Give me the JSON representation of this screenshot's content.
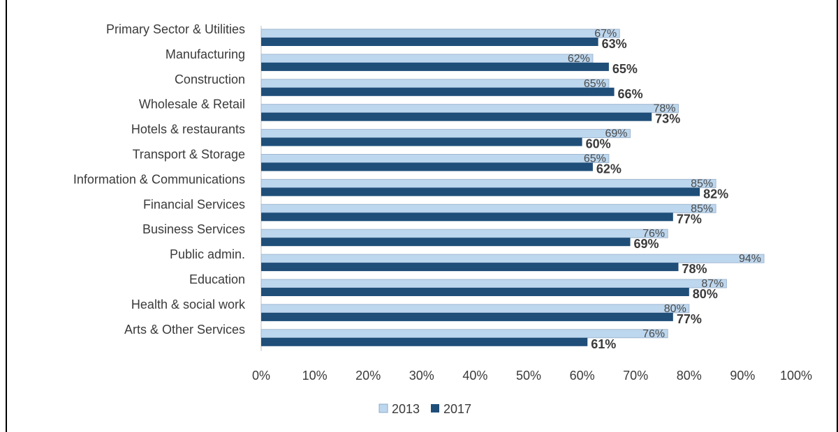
{
  "chart_data": {
    "type": "bar",
    "orientation": "horizontal",
    "categories": [
      "Primary Sector & Utilities",
      "Manufacturing",
      "Construction",
      "Wholesale & Retail",
      "Hotels & restaurants",
      "Transport & Storage",
      "Information & Communications",
      "Financial Services",
      "Business Services",
      "Public admin.",
      "Education",
      "Health & social work",
      "Arts & Other Services"
    ],
    "series": [
      {
        "name": "2013",
        "color": "#bdd7ee",
        "values": [
          67,
          62,
          65,
          78,
          69,
          65,
          85,
          85,
          76,
          94,
          87,
          80,
          76
        ],
        "labels": [
          "67%",
          "62%",
          "65%",
          "78%",
          "69%",
          "65%",
          "85%",
          "85%",
          "76%",
          "94%",
          "87%",
          "80%",
          "76%"
        ]
      },
      {
        "name": "2017",
        "color": "#1f4e79",
        "values": [
          63,
          65,
          66,
          73,
          60,
          62,
          82,
          77,
          69,
          78,
          80,
          77,
          61
        ],
        "labels": [
          "63%",
          "65%",
          "66%",
          "73%",
          "60%",
          "62%",
          "82%",
          "77%",
          "69%",
          "78%",
          "80%",
          "77%",
          "61%"
        ]
      }
    ],
    "xlim": [
      0,
      100
    ],
    "xticks": [
      "0%",
      "10%",
      "20%",
      "30%",
      "40%",
      "50%",
      "60%",
      "70%",
      "80%",
      "90%",
      "100%"
    ],
    "grid": false,
    "legend": "bottom",
    "title": "",
    "xlabel": "",
    "ylabel": ""
  }
}
